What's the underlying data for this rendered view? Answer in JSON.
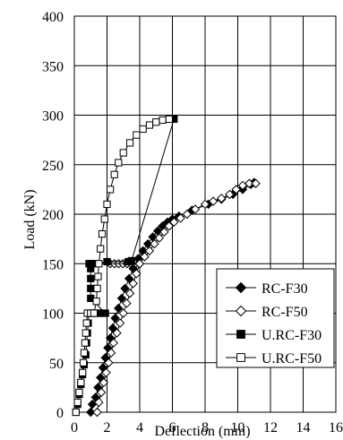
{
  "chart_data": {
    "type": "line",
    "xlabel": "Deflection (mm)",
    "ylabel": "Load (kN)",
    "xlim": [
      0,
      16
    ],
    "ylim": [
      0,
      400
    ],
    "x_ticks": [
      "0",
      "2",
      "4",
      "6",
      "8",
      "10",
      "12",
      "14",
      "16"
    ],
    "y_ticks": [
      "0",
      "50",
      "100",
      "150",
      "200",
      "250",
      "300",
      "350",
      "400"
    ],
    "grid": true,
    "legend_position": "bottom-right",
    "series": [
      {
        "name": "RC-F30",
        "marker": "diamond-filled",
        "color": "#000000",
        "points": [
          [
            1.0,
            0
          ],
          [
            1.1,
            8
          ],
          [
            1.3,
            15
          ],
          [
            1.45,
            25
          ],
          [
            1.6,
            35
          ],
          [
            1.75,
            45
          ],
          [
            1.9,
            55
          ],
          [
            2.05,
            65
          ],
          [
            2.2,
            75
          ],
          [
            2.35,
            85
          ],
          [
            2.5,
            95
          ],
          [
            2.7,
            105
          ],
          [
            2.9,
            115
          ],
          [
            3.1,
            125
          ],
          [
            3.35,
            135
          ],
          [
            3.6,
            145
          ],
          [
            3.9,
            155
          ],
          [
            4.2,
            163
          ],
          [
            4.5,
            170
          ],
          [
            4.8,
            177
          ],
          [
            5.1,
            183
          ],
          [
            5.4,
            188
          ],
          [
            5.7,
            192
          ],
          [
            6.0,
            195
          ],
          [
            6.4,
            198
          ],
          [
            7.2,
            204
          ],
          [
            8.2,
            210
          ],
          [
            9.0,
            215
          ],
          [
            9.7,
            220
          ],
          [
            10.3,
            225
          ],
          [
            10.8,
            230
          ],
          [
            11.0,
            232
          ]
        ]
      },
      {
        "name": "RC-F50",
        "marker": "diamond-open",
        "color": "#000000",
        "points": [
          [
            1.4,
            0
          ],
          [
            1.5,
            10
          ],
          [
            1.65,
            20
          ],
          [
            1.8,
            30
          ],
          [
            1.95,
            40
          ],
          [
            2.1,
            50
          ],
          [
            2.25,
            60
          ],
          [
            2.4,
            70
          ],
          [
            2.6,
            80
          ],
          [
            2.8,
            90
          ],
          [
            3.0,
            100
          ],
          [
            3.2,
            110
          ],
          [
            3.4,
            120
          ],
          [
            3.6,
            130
          ],
          [
            3.8,
            140
          ],
          [
            4.0,
            150
          ],
          [
            4.3,
            157
          ],
          [
            4.6,
            163
          ],
          [
            4.9,
            170
          ],
          [
            5.2,
            176
          ],
          [
            5.5,
            182
          ],
          [
            5.8,
            188
          ],
          [
            6.1,
            192
          ],
          [
            6.5,
            196
          ],
          [
            6.9,
            200
          ],
          [
            7.4,
            205
          ],
          [
            8.0,
            210
          ],
          [
            8.5,
            213
          ],
          [
            9.0,
            216
          ],
          [
            9.5,
            220
          ],
          [
            9.9,
            225
          ],
          [
            10.3,
            229
          ],
          [
            10.7,
            231
          ],
          [
            11.1,
            231
          ]
        ]
      },
      {
        "name": "U.RC-F30",
        "marker": "square-filled",
        "color": "#000000",
        "points": [
          [
            0.1,
            0
          ],
          [
            0.2,
            8
          ],
          [
            0.3,
            18
          ],
          [
            0.4,
            28
          ],
          [
            0.5,
            38
          ],
          [
            0.6,
            48
          ],
          [
            0.7,
            58
          ],
          [
            0.75,
            70
          ],
          [
            0.8,
            80
          ],
          [
            0.85,
            90
          ],
          [
            0.9,
            100
          ],
          [
            1.1,
            100
          ],
          [
            1.3,
            100
          ],
          [
            1.5,
            100
          ],
          [
            1.7,
            100
          ],
          [
            1.9,
            100
          ],
          [
            1.0,
            115
          ],
          [
            1.0,
            125
          ],
          [
            1.0,
            135
          ],
          [
            1.0,
            145
          ],
          [
            0.9,
            150
          ],
          [
            1.0,
            150
          ],
          [
            1.2,
            150
          ],
          [
            2.0,
            152
          ],
          [
            3.3,
            152
          ],
          [
            3.5,
            153
          ],
          [
            6.1,
            296
          ]
        ]
      },
      {
        "name": "U.RC-F50",
        "marker": "square-open",
        "color": "#000000",
        "points": [
          [
            0.1,
            0
          ],
          [
            0.2,
            10
          ],
          [
            0.3,
            20
          ],
          [
            0.4,
            30
          ],
          [
            0.5,
            40
          ],
          [
            0.55,
            50
          ],
          [
            0.6,
            60
          ],
          [
            0.65,
            70
          ],
          [
            0.7,
            80
          ],
          [
            0.75,
            90
          ],
          [
            0.8,
            100
          ],
          [
            1.0,
            100
          ],
          [
            1.2,
            100
          ],
          [
            1.35,
            112
          ],
          [
            1.4,
            125
          ],
          [
            1.45,
            137
          ],
          [
            1.5,
            150
          ],
          [
            1.6,
            165
          ],
          [
            1.7,
            180
          ],
          [
            1.85,
            195
          ],
          [
            2.0,
            210
          ],
          [
            2.2,
            225
          ],
          [
            2.45,
            240
          ],
          [
            2.7,
            252
          ],
          [
            3.0,
            262
          ],
          [
            3.4,
            272
          ],
          [
            3.8,
            280
          ],
          [
            4.2,
            286
          ],
          [
            4.6,
            290
          ],
          [
            5.0,
            293
          ],
          [
            5.4,
            295
          ],
          [
            5.8,
            296
          ]
        ]
      }
    ],
    "connector_lines": [
      {
        "series_ref": "RC-F50",
        "points": [
          [
            2.2,
            150
          ],
          [
            4.0,
            150
          ]
        ],
        "marker": "diamond-open",
        "mark_count": 8
      },
      {
        "series_ref": "U.RC-F30",
        "points": [
          [
            1.0,
            150
          ],
          [
            3.5,
            150
          ]
        ],
        "marker": "none",
        "mark_count": 0
      }
    ]
  }
}
